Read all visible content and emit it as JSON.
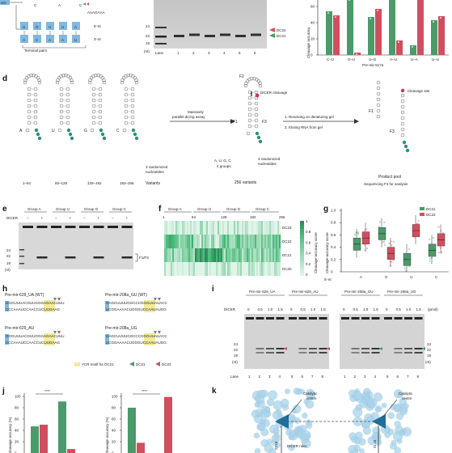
{
  "colors": {
    "dc21": "#4a9a6a",
    "dc22": "#cf4f5f",
    "ycr": "#f2ec9a",
    "blue": "#7fb8e0",
    "teal": "#2e8f7a"
  },
  "panel_labels": [
    "d",
    "e",
    "f",
    "g",
    "h",
    "i",
    "j",
    "k"
  ],
  "top_a": {
    "seq_top": [
      "U",
      "G",
      "U",
      "U",
      "A"
    ],
    "seq_bot": [
      "A",
      "C",
      "A",
      "A",
      "U"
    ],
    "top_nt": "5′-nt",
    "bot_nt": "3′-nt",
    "letters": [
      "C",
      "A",
      "C"
    ],
    "tail": "AAAGAAA",
    "terminal": "Terminal pairs"
  },
  "top_b": {
    "markers": [
      "24",
      "22",
      "19"
    ],
    "unit": "(nt)",
    "lanes_label": "Lane",
    "lanes": [
      "1",
      "2",
      "3",
      "4",
      "5",
      "6"
    ],
    "dc22": "DC22",
    "dc21": "DC21"
  },
  "top_c": {
    "ylabel": "Cleavage accuracy",
    "yticks": [
      "0",
      "20",
      "40",
      "60"
    ],
    "categories": [
      "C–U",
      "G–U",
      "U–G",
      "A–U",
      "U–A",
      "U–U"
    ],
    "xlabel": "Pre-mir-517a"
  },
  "d": {
    "loops": [
      "A",
      "U",
      "G",
      "C"
    ],
    "ranges": [
      "1–64",
      "65–128",
      "129–192",
      "193–256"
    ],
    "variants": "Variants",
    "rand1": "3 randomized",
    "rand2": "nucleotides",
    "assay1": "Massively",
    "assay2": "parallel dicing assay",
    "f1": "F1",
    "f2": "F2",
    "f3": "F3",
    "dicer_cleavage": "DICER cleavage",
    "groups1": "A, U, G, C",
    "groups2": "4 groups",
    "v256": "256 variants",
    "step1": "1. Resolving on denaturing  gel",
    "step2": "2. Eluting RNA from gel",
    "cleavage_site": "Cleavage site",
    "product_pool": "Product pool",
    "sequencing": "Sequencing F3 for analysis"
  },
  "e": {
    "groups": [
      "Group A",
      "Group U",
      "Group G",
      "Group C"
    ],
    "dicer": "DICER",
    "signs": [
      "–",
      "+",
      "–",
      "+",
      "–",
      "+",
      "–",
      "+"
    ],
    "markers": [
      "24",
      "22",
      "19"
    ],
    "unit": "(nt)",
    "band": "F1/F3"
  },
  "f": {
    "groups": [
      "Group A",
      "Group U",
      "Group G",
      "Group C"
    ],
    "xticks": [
      "1",
      "64",
      "128",
      "192",
      "256"
    ],
    "rows": [
      "DC23",
      "DC22",
      "DC21",
      "DC20"
    ],
    "cb_ticks": [
      "1",
      "0.8",
      "0.6",
      "0.4",
      "0.2",
      "0"
    ],
    "cb_label": "Cleavage-accuracy score"
  },
  "g": {
    "ylabel": "Cleavage-accuracy score",
    "yticks": [
      "0",
      "0.2",
      "0.4",
      "0.6",
      "0.8",
      "1.0"
    ],
    "xlabel": "5′-nt",
    "categories": [
      "A",
      "G",
      "U",
      "C"
    ],
    "legend": [
      "DC21",
      "DC22"
    ]
  },
  "h": {
    "s1": "Pre-mir-629_UA (WT)",
    "s2": "Pre-mir-629_AU",
    "s3": "Pre-mir-208a_GU (WT)",
    "s4": "Pre-mir-208a_UG",
    "seq629_top": "GGGUUUACGUUGGGAGAACUUU",
    "seq629_bot": "CCCAAAUCCAACCUCUUGAAG",
    "seq208_top": "GAGCUUUUGGCCCGGGUUAUACC",
    "seq208_bot": "UCGGAAAACUGGGUCCAAUAUGG",
    "legend": [
      "YCR motif for DC21",
      "DC21",
      "DC22"
    ]
  },
  "i": {
    "titles": [
      "Pre-mir-629_UA",
      "Pre-mir-629_AU",
      "Pre-mir-208a_GU",
      "Pre-mir-208a_UG"
    ],
    "dicer": "DICER",
    "doses": [
      "0",
      "0.5",
      "1.0",
      "1.5"
    ],
    "pmol": "(pmol)",
    "lane": "Lane",
    "lanes": [
      "1",
      "2",
      "3",
      "4",
      "5",
      "6",
      "7",
      "8"
    ],
    "markers": [
      "24",
      "22",
      "19"
    ],
    "unit": "(nt)"
  },
  "j": {
    "ylabel": "Cleavage accuracy (%)",
    "yticks": [
      "0",
      "20",
      "40",
      "60",
      "80",
      "100"
    ],
    "sig": "****"
  },
  "k": {
    "catalytic": "Catalytic",
    "centre": "centre",
    "ruler": "DICER ruler",
    "d1": "22 nt",
    "d2": "21 nt"
  },
  "chart_data": [
    {
      "type": "bar",
      "panel": "top-c",
      "categories": [
        "C–U",
        "G–U",
        "U–G",
        "A–U",
        "U–A",
        "U–U"
      ],
      "series": [
        {
          "name": "DC21",
          "values": [
            54,
            70,
            47,
            72,
            12,
            43
          ]
        },
        {
          "name": "DC22",
          "values": [
            49,
            3,
            57,
            18,
            72,
            48
          ]
        }
      ],
      "ylim": [
        0,
        70
      ]
    },
    {
      "type": "heatmap",
      "panel": "f",
      "rows": [
        "DC23",
        "DC22",
        "DC21",
        "DC20"
      ],
      "x_range": [
        1,
        256
      ],
      "clim": [
        0,
        1
      ]
    },
    {
      "type": "box",
      "panel": "g",
      "categories": [
        "A",
        "G",
        "U",
        "C"
      ],
      "series": [
        {
          "name": "DC21",
          "medians": [
            0.45,
            0.62,
            0.2,
            0.35
          ]
        },
        {
          "name": "DC22",
          "medians": [
            0.55,
            0.3,
            0.67,
            0.52
          ]
        }
      ],
      "ylim": [
        0,
        1.0
      ]
    },
    {
      "type": "bar",
      "panel": "j-left",
      "series": [
        {
          "name": "DC21",
          "values": [
            47,
            91
          ]
        },
        {
          "name": "DC22",
          "values": [
            50,
            7
          ]
        }
      ],
      "ylim": [
        0,
        100
      ]
    },
    {
      "type": "bar",
      "panel": "j-right",
      "series": [
        {
          "name": "DC21",
          "values": [
            80,
            0
          ]
        },
        {
          "name": "DC22",
          "values": [
            18,
            99
          ]
        }
      ],
      "ylim": [
        0,
        100
      ]
    }
  ]
}
